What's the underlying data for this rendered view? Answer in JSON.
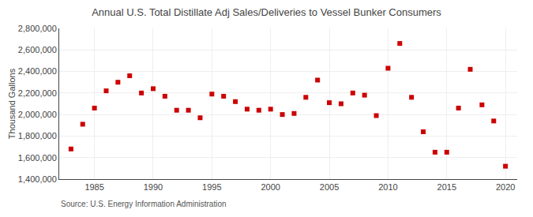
{
  "chart_data": {
    "type": "scatter",
    "title": "Annual U.S. Total Distillate Adj Sales/Deliveries to Vessel Bunker Consumers",
    "ylabel": "Thousand Gallons",
    "annotations": [
      "Source: U.S. Energy Information Administration"
    ],
    "x": [
      1983,
      1984,
      1985,
      1986,
      1987,
      1988,
      1989,
      1990,
      1991,
      1992,
      1993,
      1994,
      1995,
      1996,
      1997,
      1998,
      1999,
      2000,
      2001,
      2002,
      2003,
      2004,
      2005,
      2006,
      2007,
      2008,
      2009,
      2010,
      2011,
      2012,
      2013,
      2014,
      2015,
      2016,
      2017,
      2018,
      2019,
      2020
    ],
    "values": [
      1680000,
      1910000,
      2060000,
      2220000,
      2300000,
      2360000,
      2200000,
      2240000,
      2170000,
      2040000,
      2040000,
      1970000,
      2190000,
      2170000,
      2120000,
      2050000,
      2040000,
      2050000,
      2000000,
      2010000,
      2160000,
      2320000,
      2110000,
      2100000,
      2200000,
      2180000,
      1990000,
      2430000,
      2660000,
      2160000,
      1840000,
      1650000,
      1650000,
      2060000,
      2420000,
      2090000,
      1940000,
      1520000
    ],
    "color": "#cc0000",
    "marker": "square",
    "xlim": [
      1982,
      2021
    ],
    "xticks": [
      1985,
      1990,
      1995,
      2000,
      2005,
      2010,
      2015,
      2020
    ],
    "ylim": [
      1400000,
      2800000
    ],
    "yticks": [
      {
        "value": 1400000,
        "label": "1,400,000"
      },
      {
        "value": 1600000,
        "label": "1,600,000"
      },
      {
        "value": 1800000,
        "label": "1,800,000"
      },
      {
        "value": 2000000,
        "label": "2,000,000"
      },
      {
        "value": 2200000,
        "label": "2,200,000"
      },
      {
        "value": 2400000,
        "label": "2,400,000"
      },
      {
        "value": 2600000,
        "label": "2,600,000"
      },
      {
        "value": 2800000,
        "label": "2,800,000"
      }
    ],
    "grid": true
  }
}
